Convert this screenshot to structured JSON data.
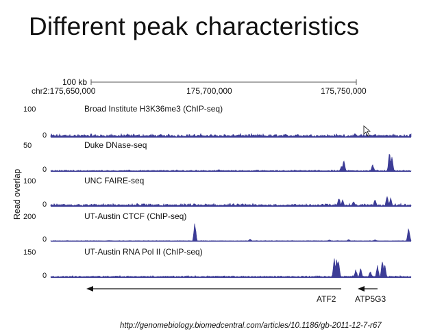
{
  "slide": {
    "title": "Different peak characteristics",
    "source_url": "http://genomebiology.biomedcentral.com/articles/10.1186/gb-2011-12-7-r67"
  },
  "figure": {
    "scale_label": "100 kb",
    "chrom_label": "chr2:175,650,000",
    "positions": [
      "175,700,000",
      "175,750,000"
    ],
    "y_axis_label": "Read overlap",
    "track_color": "#3c3c96",
    "genes": [
      {
        "name": "ATF2",
        "strand": "-"
      },
      {
        "name": "ATP5G3",
        "strand": "-"
      }
    ]
  },
  "chart_data": {
    "type": "area",
    "x_range": [
      175620000,
      175770000
    ],
    "xlabel": "",
    "ylabel": "Read overlap",
    "tracks": [
      {
        "name": "Broad Institute H3K36me3 (ChIP-seq)",
        "ymax": 100,
        "ymin_label": "0",
        "baseline": 6,
        "noise": 7,
        "peaks": [
          [
            175700000,
            8
          ],
          [
            175722000,
            10
          ],
          [
            175752000,
            14
          ],
          [
            175755000,
            12
          ]
        ]
      },
      {
        "name": "Duke DNase-seq",
        "ymax": 50,
        "ymin_label": "0",
        "baseline": 1,
        "noise": 1.5,
        "peaks": [
          [
            175690000,
            4
          ],
          [
            175741000,
            10
          ],
          [
            175742000,
            26
          ],
          [
            175754000,
            15
          ],
          [
            175761000,
            42
          ],
          [
            175762000,
            30
          ]
        ]
      },
      {
        "name": "UNC FAIRE-seq",
        "ymax": 100,
        "ymin_label": "0",
        "baseline": 5,
        "noise": 6,
        "peaks": [
          [
            175680000,
            10
          ],
          [
            175700000,
            8
          ],
          [
            175735000,
            12
          ],
          [
            175740000,
            38
          ],
          [
            175741500,
            30
          ],
          [
            175746000,
            22
          ],
          [
            175755000,
            32
          ],
          [
            175760000,
            50
          ],
          [
            175761500,
            35
          ]
        ]
      },
      {
        "name": "UT-Austin CTCF (ChIP-seq)",
        "ymax": 200,
        "ymin_label": "0",
        "baseline": 1,
        "noise": 2,
        "peaks": [
          [
            175680000,
            160
          ],
          [
            175703000,
            18
          ],
          [
            175736000,
            10
          ],
          [
            175744000,
            12
          ],
          [
            175755000,
            12
          ],
          [
            175769000,
            120
          ]
        ]
      },
      {
        "name": "UT-Austin RNA Pol II (ChIP-seq)",
        "ymax": 150,
        "ymin_label": "0",
        "baseline": 5,
        "noise": 5,
        "peaks": [
          [
            175738000,
            120
          ],
          [
            175739000,
            125
          ],
          [
            175739800,
            118
          ],
          [
            175747000,
            50
          ],
          [
            175749000,
            60
          ],
          [
            175753000,
            40
          ],
          [
            175756000,
            75
          ],
          [
            175758000,
            110
          ],
          [
            175759000,
            95
          ]
        ]
      }
    ]
  }
}
